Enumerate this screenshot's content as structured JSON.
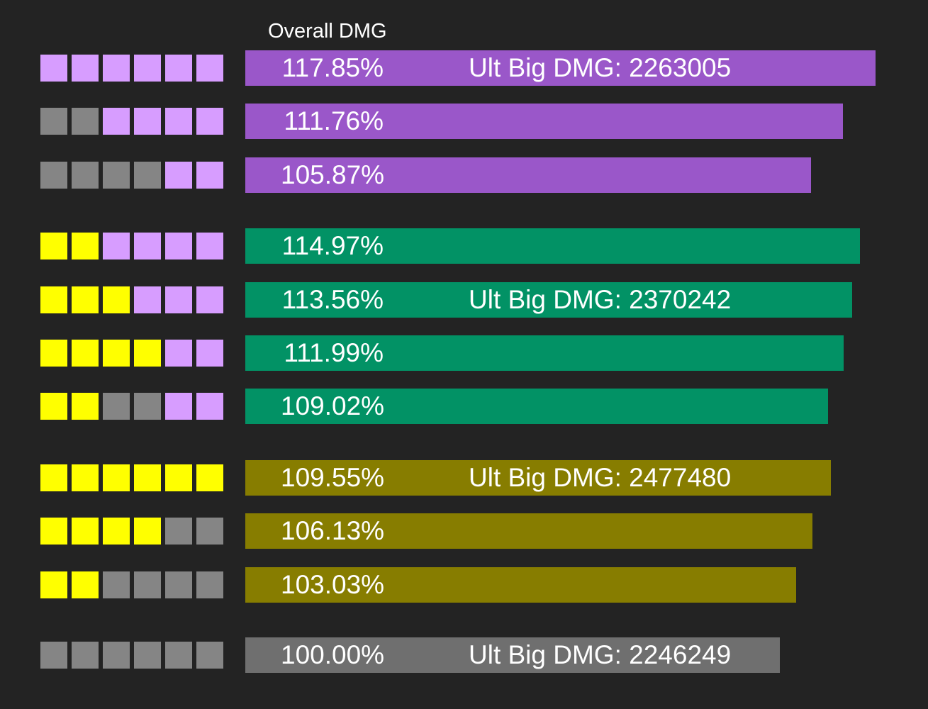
{
  "colors": {
    "background": "#232323",
    "square_purple": "#d79dff",
    "square_yellow": "#ffff00",
    "square_gray": "#858585",
    "bar_purple": "#9a57c9",
    "bar_green": "#029265",
    "bar_olive": "#877d00",
    "bar_gray": "#6f6f6f"
  },
  "chart_data": {
    "type": "bar",
    "orientation": "horizontal",
    "title": "Overall DMG",
    "xlim": [
      0,
      118
    ],
    "grid": false,
    "rows": [
      {
        "squares": [
          "purple",
          "purple",
          "purple",
          "purple",
          "purple",
          "purple"
        ],
        "value": 117.85,
        "label": "117.85%",
        "bar_color": "purple",
        "ult_text": "Ult Big DMG: 2263005"
      },
      {
        "squares": [
          "gray",
          "gray",
          "purple",
          "purple",
          "purple",
          "purple"
        ],
        "value": 111.76,
        "label": "111.76%",
        "bar_color": "purple",
        "ult_text": ""
      },
      {
        "squares": [
          "gray",
          "gray",
          "gray",
          "gray",
          "purple",
          "purple"
        ],
        "value": 105.87,
        "label": "105.87%",
        "bar_color": "purple",
        "ult_text": ""
      },
      {
        "squares": [
          "yellow",
          "yellow",
          "purple",
          "purple",
          "purple",
          "purple"
        ],
        "value": 114.97,
        "label": "114.97%",
        "bar_color": "green",
        "ult_text": ""
      },
      {
        "squares": [
          "yellow",
          "yellow",
          "yellow",
          "purple",
          "purple",
          "purple"
        ],
        "value": 113.56,
        "label": "113.56%",
        "bar_color": "green",
        "ult_text": "Ult Big DMG: 2370242"
      },
      {
        "squares": [
          "yellow",
          "yellow",
          "yellow",
          "yellow",
          "purple",
          "purple"
        ],
        "value": 111.99,
        "label": "111.99%",
        "bar_color": "green",
        "ult_text": ""
      },
      {
        "squares": [
          "yellow",
          "yellow",
          "gray",
          "gray",
          "purple",
          "purple"
        ],
        "value": 109.02,
        "label": "109.02%",
        "bar_color": "green",
        "ult_text": ""
      },
      {
        "squares": [
          "yellow",
          "yellow",
          "yellow",
          "yellow",
          "yellow",
          "yellow"
        ],
        "value": 109.55,
        "label": "109.55%",
        "bar_color": "olive",
        "ult_text": "Ult Big DMG: 2477480"
      },
      {
        "squares": [
          "yellow",
          "yellow",
          "yellow",
          "yellow",
          "gray",
          "gray"
        ],
        "value": 106.13,
        "label": "106.13%",
        "bar_color": "olive",
        "ult_text": ""
      },
      {
        "squares": [
          "yellow",
          "yellow",
          "gray",
          "gray",
          "gray",
          "gray"
        ],
        "value": 103.03,
        "label": "103.03%",
        "bar_color": "olive",
        "ult_text": ""
      },
      {
        "squares": [
          "gray",
          "gray",
          "gray",
          "gray",
          "gray",
          "gray"
        ],
        "value": 100.0,
        "label": "100.00%",
        "bar_color": "gray",
        "ult_text": "Ult Big DMG: 2246249"
      }
    ]
  }
}
